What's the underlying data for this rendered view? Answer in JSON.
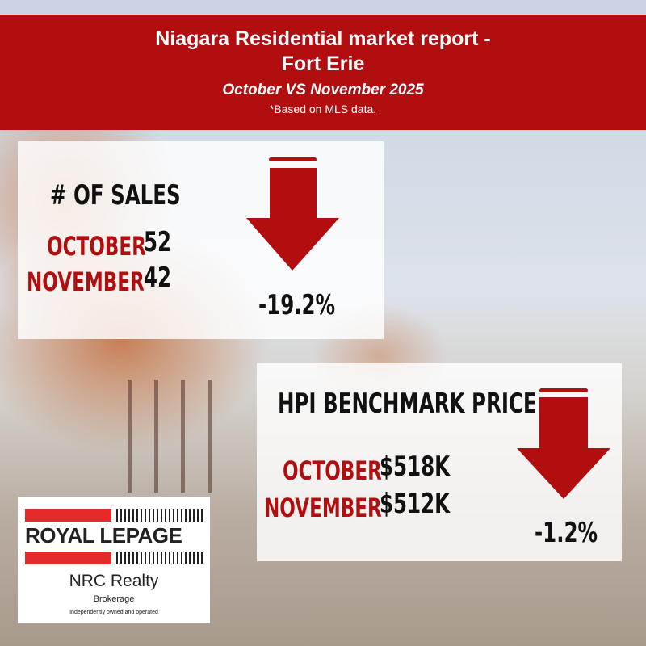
{
  "header": {
    "title_line1": "Niagara Residential market report -",
    "title_line2": "Fort Erie",
    "subtitle": "October VS November 2025",
    "note": "*Based on MLS data."
  },
  "sales": {
    "title": "# OF SALES",
    "rows": [
      {
        "month": "OCTOBER",
        "value": "52"
      },
      {
        "month": "NOVEMBER",
        "value": "42"
      }
    ],
    "change": "-19.2%",
    "direction": "down"
  },
  "hpi": {
    "title": "HPI BENCHMARK PRICE",
    "rows": [
      {
        "month": "OCTOBER",
        "value": "$518K"
      },
      {
        "month": "NOVEMBER",
        "value": "$512K"
      }
    ],
    "change": "-1.2%",
    "direction": "down"
  },
  "logo": {
    "brand": "ROYAL LEPAGE",
    "office": "NRC Realty",
    "type": "Brokerage",
    "tagline": "Independently owned and operated"
  },
  "colors": {
    "accent": "#b20e10",
    "logo_red": "#e52a2a"
  }
}
